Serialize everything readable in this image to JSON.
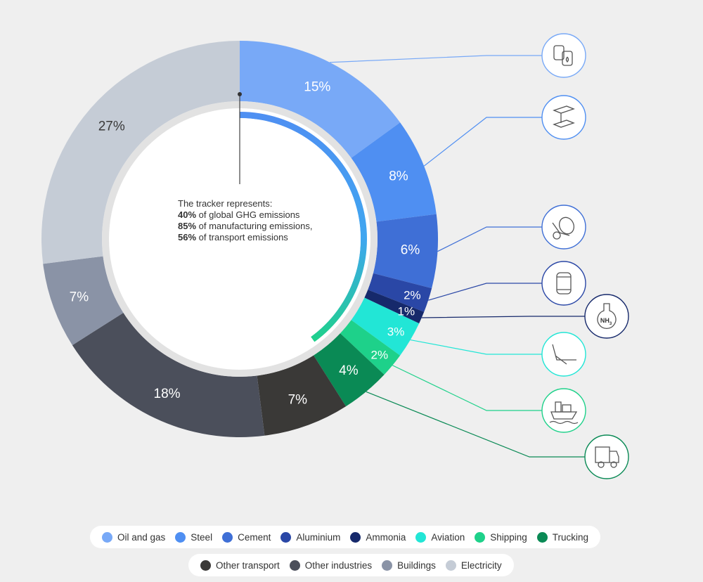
{
  "chart_data": {
    "type": "donut",
    "slices": [
      {
        "label": "Oil and gas",
        "value": 15,
        "text": "15%",
        "color": "#78a9f7",
        "icon": "oil-barrels-icon"
      },
      {
        "label": "Steel",
        "value": 8,
        "text": "8%",
        "color": "#4f8ff2",
        "icon": "steel-beam-icon"
      },
      {
        "label": "Cement",
        "value": 6,
        "text": "6%",
        "color": "#3f6fd6",
        "icon": "cement-mixer-icon"
      },
      {
        "label": "Aluminium",
        "value": 2,
        "text": "2%",
        "color": "#2a47a6",
        "icon": "aluminium-can-icon"
      },
      {
        "label": "Ammonia",
        "value": 1,
        "text": "1%",
        "color": "#16296b",
        "icon": "ammonia-flask-icon"
      },
      {
        "label": "Aviation",
        "value": 3,
        "text": "3%",
        "color": "#22e6d6",
        "icon": "airplane-tail-icon"
      },
      {
        "label": "Shipping",
        "value": 2,
        "text": "2%",
        "color": "#1ed18a",
        "icon": "cargo-ship-icon"
      },
      {
        "label": "Trucking",
        "value": 4,
        "text": "4%",
        "color": "#0a8a55",
        "icon": "truck-icon"
      },
      {
        "label": "Other transport",
        "value": 7,
        "text": "7%",
        "color": "#3a3937",
        "icon": ""
      },
      {
        "label": "Other industries",
        "value": 18,
        "text": "18%",
        "color": "#4b4f5b",
        "icon": ""
      },
      {
        "label": "Buildings",
        "value": 7,
        "text": "7%",
        "color": "#8a93a6",
        "icon": ""
      },
      {
        "label": "Electricity",
        "value": 27,
        "text": "27%",
        "color": "#c5ccd6",
        "icon": ""
      }
    ],
    "inner_progress": {
      "value": 40,
      "unit": "percent"
    },
    "ammonia_formula": "NH",
    "ammonia_subscript": "3",
    "center_text": {
      "intro": "The tracker represents:",
      "lines": [
        {
          "value": "40%",
          "text": " of global GHG emissions"
        },
        {
          "value": "85%",
          "text": " of manufacturing emissions,"
        },
        {
          "value": "56%",
          "text": " of transport emissions"
        }
      ]
    },
    "legend": [
      [
        "Oil and gas",
        "Steel",
        "Cement",
        "Aluminium",
        "Ammonia",
        "Aviation",
        "Shipping",
        "Trucking"
      ],
      [
        "Other transport",
        "Other industries",
        "Buildings",
        "Electricity"
      ]
    ]
  }
}
